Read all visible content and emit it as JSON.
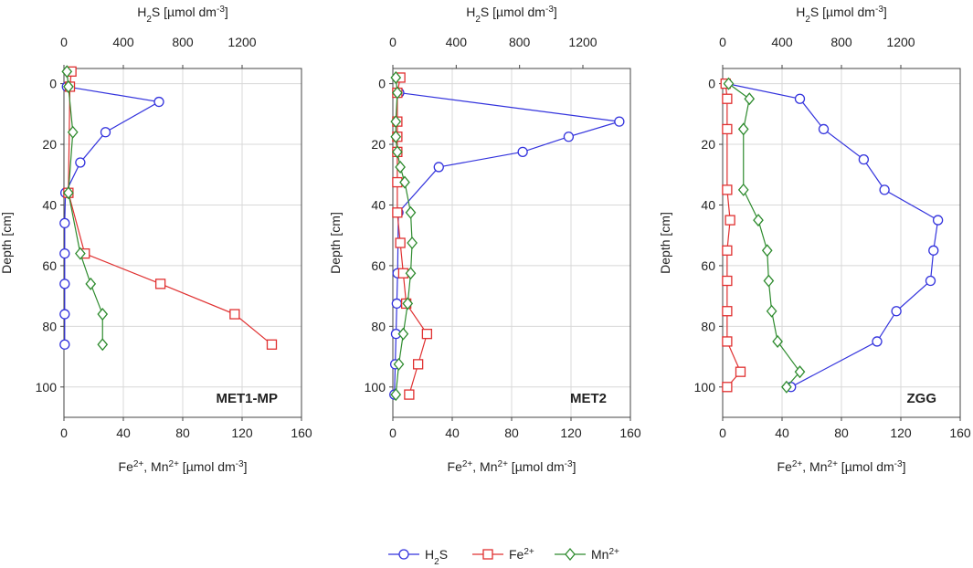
{
  "chart_data": {
    "type": "line",
    "figure": "Depth profiles of porewater H2S, Fe2+ and Mn2+",
    "legend": {
      "placement": "bottom-center",
      "entries": [
        {
          "key": "h2s",
          "label_main": "H",
          "label_sub": "2",
          "label_tail": "S",
          "color": "#3333dd",
          "marker": "circle"
        },
        {
          "key": "fe",
          "label_main": "Fe",
          "label_sup": "2+",
          "color": "#e03030",
          "marker": "square"
        },
        {
          "key": "mn",
          "label_main": "Mn",
          "label_sup": "2+",
          "color": "#2e8b2e",
          "marker": "diamond"
        }
      ]
    },
    "axis_text": {
      "bottom_a": "Fe",
      "bottom_sup": "2+",
      "bottom_b": ", Mn",
      "bottom_sup2": "2+",
      "bottom_c": " [µmol dm",
      "bottom_sup3": "-3",
      "bottom_d": "]",
      "top_a": "H",
      "top_sub": "2",
      "top_b": "S [µmol dm",
      "top_sup": "-3",
      "top_c": "]",
      "left": "Depth [cm]"
    },
    "panels": [
      {
        "name": "MET1-MP",
        "bottom_range": [
          0,
          160
        ],
        "bottom_ticks": [
          0,
          40,
          80,
          120,
          160
        ],
        "top_range": [
          0,
          1600
        ],
        "top_ticks": [
          0,
          400,
          800,
          1200
        ],
        "depth_range": [
          -5,
          110
        ],
        "depth_ticks": [
          0,
          20,
          40,
          60,
          80,
          100
        ],
        "series": {
          "h2s": {
            "depth": [
              1,
              6,
              16,
              26,
              36,
              46,
              56,
              66,
              76,
              86
            ],
            "values": [
              20,
              640,
              280,
              110,
              10,
              5,
              5,
              5,
              5,
              5
            ]
          },
          "fe": {
            "depth": [
              -4,
              1,
              36,
              56,
              66,
              76,
              86
            ],
            "values": [
              5,
              4,
              3,
              14,
              65,
              115,
              140
            ]
          },
          "mn": {
            "depth": [
              -4,
              1,
              16,
              36,
              56,
              66,
              76,
              86
            ],
            "values": [
              2,
              3,
              6,
              3,
              11,
              18,
              26,
              26
            ]
          }
        }
      },
      {
        "name": "MET2",
        "bottom_range": [
          0,
          160
        ],
        "bottom_ticks": [
          0,
          40,
          80,
          120,
          160
        ],
        "top_range": [
          0,
          1500
        ],
        "top_ticks": [
          0,
          400,
          800,
          1200
        ],
        "depth_range": [
          -5,
          110
        ],
        "depth_ticks": [
          0,
          20,
          40,
          60,
          80,
          100
        ],
        "series": {
          "h2s": {
            "depth": [
              3,
              12.5,
              17.5,
              22.5,
              27.5,
              42.5,
              62.5,
              72.5,
              82.5,
              92.5,
              102.5
            ],
            "values": [
              40,
              1430,
              1110,
              820,
              290,
              35,
              30,
              25,
              20,
              15,
              10
            ]
          },
          "fe": {
            "depth": [
              -2,
              3,
              12.5,
              17.5,
              22.5,
              32.5,
              42.5,
              52.5,
              62.5,
              72.5,
              82.5,
              92.5,
              102.5
            ],
            "values": [
              5,
              3,
              3,
              3,
              3,
              3,
              3,
              5,
              7,
              9,
              23,
              17,
              11
            ]
          },
          "mn": {
            "depth": [
              -2,
              3,
              12.5,
              17.5,
              22.5,
              27.5,
              32.5,
              42.5,
              52.5,
              62.5,
              72.5,
              82.5,
              92.5,
              102.5
            ],
            "values": [
              2,
              3,
              2,
              2,
              3,
              5,
              8,
              12,
              13,
              12,
              10,
              7,
              4,
              2
            ]
          }
        }
      },
      {
        "name": "ZGG",
        "bottom_range": [
          0,
          160
        ],
        "bottom_ticks": [
          0,
          40,
          80,
          120,
          160
        ],
        "top_range": [
          0,
          1600
        ],
        "top_ticks": [
          0,
          400,
          800,
          1200
        ],
        "depth_range": [
          -5,
          110
        ],
        "depth_ticks": [
          0,
          20,
          40,
          60,
          80,
          100
        ],
        "series": {
          "h2s": {
            "depth": [
              0,
              5,
              15,
              25,
              35,
              45,
              55,
              65,
              75,
              85,
              100
            ],
            "values": [
              30,
              520,
              680,
              950,
              1090,
              1450,
              1420,
              1400,
              1170,
              1040,
              460
            ]
          },
          "fe": {
            "depth": [
              0,
              5,
              15,
              35,
              45,
              55,
              65,
              75,
              85,
              95,
              100
            ],
            "values": [
              2,
              3,
              3,
              3,
              5,
              3,
              3,
              3,
              3,
              12,
              3
            ]
          },
          "mn": {
            "depth": [
              0,
              5,
              15,
              35,
              45,
              55,
              65,
              75,
              85,
              95,
              100
            ],
            "values": [
              4,
              18,
              14,
              14,
              24,
              30,
              31,
              33,
              37,
              52,
              43
            ]
          }
        }
      }
    ]
  }
}
